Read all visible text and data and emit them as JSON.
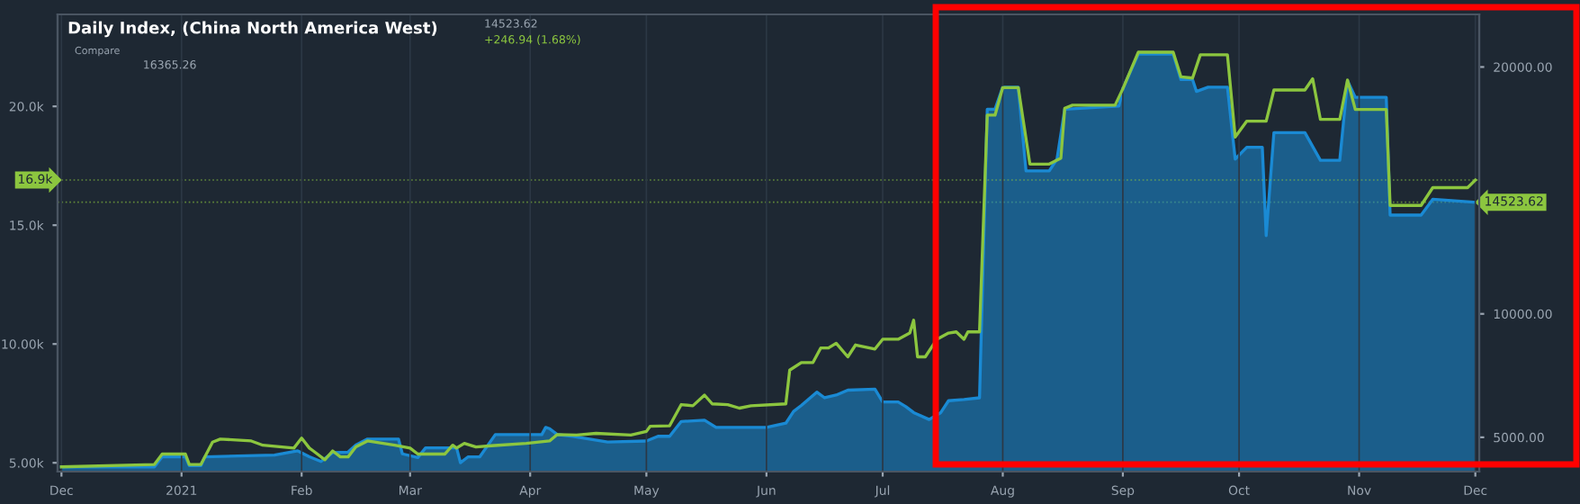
{
  "chart_data": {
    "type": "line",
    "title": "Daily Index, (China North America West)",
    "annotations": [
      "14523.62",
      "+246.94 (1.68%)",
      "Compare",
      "16365.26"
    ],
    "xlim": [
      "2020-11-30",
      "2021-12-02"
    ],
    "xticks": [
      {
        "value": "2020-12-01",
        "label": "Dec"
      },
      {
        "value": "2021-01-01",
        "label": "2021"
      },
      {
        "value": "2021-02-01",
        "label": "Feb"
      },
      {
        "value": "2021-03-01",
        "label": "Mar"
      },
      {
        "value": "2021-04-01",
        "label": "Apr"
      },
      {
        "value": "2021-05-01",
        "label": "May"
      },
      {
        "value": "2021-06-01",
        "label": "Jun"
      },
      {
        "value": "2021-07-01",
        "label": "Jul"
      },
      {
        "value": "2021-08-01",
        "label": "Aug"
      },
      {
        "value": "2021-09-01",
        "label": "Sep"
      },
      {
        "value": "2021-10-01",
        "label": "Oct"
      },
      {
        "value": "2021-11-01",
        "label": "Nov"
      },
      {
        "value": "2021-12-01",
        "label": "Dec"
      }
    ],
    "ylim": [
      4630,
      23870
    ],
    "yticks": [
      {
        "value": 5000,
        "label": "5.00k"
      },
      {
        "value": 10000,
        "label": "10.00k"
      },
      {
        "value": 15000,
        "label": "15.0k"
      },
      {
        "value": 20000,
        "label": "20.0k"
      }
    ],
    "y2lim": [
      3610,
      22130
    ],
    "y2ticks": [
      {
        "value": 5000,
        "label": "5000.00"
      },
      {
        "value": 10000,
        "label": "10000.00"
      },
      {
        "value": 20000,
        "label": "20000.00"
      }
    ],
    "grid": "x",
    "ref_lines": [
      {
        "axis": "y",
        "value": 16900,
        "label": "16.9k",
        "color": "#8cc63f",
        "line_style": "dotted"
      },
      {
        "axis": "y2",
        "value": 14523.62,
        "label": "14523.62",
        "color": "#8cc63f",
        "line_style": "dotted"
      }
    ],
    "series": [
      {
        "type": "area",
        "axis": "y2",
        "color": "#1a8ad4",
        "x": [
          "2020-12-01",
          "2020-12-25",
          "2020-12-27",
          "2021-01-02",
          "2021-01-03",
          "2021-01-06",
          "2021-01-07",
          "2021-01-25",
          "2021-01-31",
          "2021-02-03",
          "2021-02-06",
          "2021-02-09",
          "2021-02-13",
          "2021-02-15",
          "2021-02-18",
          "2021-02-26",
          "2021-02-27",
          "2021-03-03",
          "2021-03-05",
          "2021-03-13",
          "2021-03-14",
          "2021-03-16",
          "2021-03-19",
          "2021-03-23",
          "2021-04-04",
          "2021-04-05",
          "2021-04-06",
          "2021-04-08",
          "2021-04-12",
          "2021-04-21",
          "2021-05-01",
          "2021-05-04",
          "2021-05-07",
          "2021-05-10",
          "2021-05-16",
          "2021-05-19",
          "2021-06-01",
          "2021-06-06",
          "2021-06-08",
          "2021-06-10",
          "2021-06-14",
          "2021-06-16",
          "2021-06-19",
          "2021-06-22",
          "2021-06-29",
          "2021-07-01",
          "2021-07-05",
          "2021-07-07",
          "2021-07-09",
          "2021-07-13",
          "2021-07-16",
          "2021-07-18",
          "2021-07-22",
          "2021-07-26",
          "2021-07-28",
          "2021-07-30",
          "2021-08-01",
          "2021-08-05",
          "2021-08-07",
          "2021-08-13",
          "2021-08-15",
          "2021-08-17",
          "2021-08-31",
          "2021-09-01",
          "2021-09-05",
          "2021-09-14",
          "2021-09-16",
          "2021-09-19",
          "2021-09-20",
          "2021-09-23",
          "2021-09-28",
          "2021-09-30",
          "2021-10-03",
          "2021-10-07",
          "2021-10-08",
          "2021-10-10",
          "2021-10-18",
          "2021-10-22",
          "2021-10-27",
          "2021-10-29",
          "2021-10-31",
          "2021-11-08",
          "2021-11-09",
          "2021-11-17",
          "2021-11-20",
          "2021-12-01"
        ],
        "values": [
          3800,
          3800,
          4210,
          4210,
          3850,
          3850,
          4210,
          4280,
          4450,
          4210,
          4020,
          4380,
          4400,
          4690,
          4930,
          4930,
          4330,
          4180,
          4570,
          4570,
          3970,
          4210,
          4210,
          5110,
          5110,
          5400,
          5350,
          5110,
          5040,
          4810,
          4850,
          5040,
          5040,
          5640,
          5690,
          5400,
          5400,
          5570,
          6050,
          6290,
          6830,
          6600,
          6710,
          6910,
          6950,
          6430,
          6430,
          6240,
          6000,
          5720,
          6000,
          6480,
          6530,
          6600,
          18290,
          18290,
          19180,
          19180,
          15790,
          15790,
          16270,
          18290,
          18420,
          19130,
          20520,
          20520,
          19490,
          19490,
          19010,
          19180,
          19180,
          16270,
          16750,
          16750,
          13170,
          17340,
          17340,
          16220,
          16220,
          19440,
          18770,
          18770,
          14000,
          14000,
          14640,
          14520
        ]
      },
      {
        "type": "line",
        "axis": "y",
        "color": "#8cc63f",
        "x": [
          "2020-12-01",
          "2020-12-25",
          "2020-12-27",
          "2021-01-02",
          "2021-01-03",
          "2021-01-06",
          "2021-01-09",
          "2021-01-11",
          "2021-01-19",
          "2021-01-22",
          "2021-01-30",
          "2021-02-01",
          "2021-02-03",
          "2021-02-04",
          "2021-02-07",
          "2021-02-09",
          "2021-02-11",
          "2021-02-13",
          "2021-02-15",
          "2021-02-18",
          "2021-02-25",
          "2021-03-01",
          "2021-03-03",
          "2021-03-10",
          "2021-03-12",
          "2021-03-13",
          "2021-03-15",
          "2021-03-18",
          "2021-03-22",
          "2021-03-31",
          "2021-04-06",
          "2021-04-08",
          "2021-04-13",
          "2021-04-18",
          "2021-04-27",
          "2021-05-01",
          "2021-05-02",
          "2021-05-07",
          "2021-05-10",
          "2021-05-13",
          "2021-05-16",
          "2021-05-18",
          "2021-05-22",
          "2021-05-25",
          "2021-05-28",
          "2021-06-06",
          "2021-06-07",
          "2021-06-10",
          "2021-06-13",
          "2021-06-15",
          "2021-06-17",
          "2021-06-19",
          "2021-06-22",
          "2021-06-24",
          "2021-06-29",
          "2021-07-01",
          "2021-07-05",
          "2021-07-08",
          "2021-07-09",
          "2021-07-10",
          "2021-07-12",
          "2021-07-15",
          "2021-07-18",
          "2021-07-20",
          "2021-07-22",
          "2021-07-23",
          "2021-07-26",
          "2021-07-28",
          "2021-07-30",
          "2021-08-01",
          "2021-08-05",
          "2021-08-08",
          "2021-08-13",
          "2021-08-16",
          "2021-08-17",
          "2021-08-19",
          "2021-08-30",
          "2021-09-01",
          "2021-09-05",
          "2021-09-14",
          "2021-09-16",
          "2021-09-19",
          "2021-09-21",
          "2021-09-28",
          "2021-09-30",
          "2021-10-03",
          "2021-10-08",
          "2021-10-10",
          "2021-10-18",
          "2021-10-20",
          "2021-10-22",
          "2021-10-27",
          "2021-10-29",
          "2021-10-31",
          "2021-11-08",
          "2021-11-09",
          "2021-11-17",
          "2021-11-20",
          "2021-11-29",
          "2021-12-01"
        ],
        "values": [
          4830,
          4930,
          5370,
          5370,
          4930,
          4930,
          5870,
          6000,
          5920,
          5740,
          5620,
          6040,
          5620,
          5500,
          5130,
          5500,
          5250,
          5250,
          5670,
          5920,
          5740,
          5620,
          5370,
          5370,
          5740,
          5620,
          5820,
          5670,
          5720,
          5820,
          5920,
          6190,
          6170,
          6240,
          6170,
          6320,
          6540,
          6560,
          7450,
          7400,
          7850,
          7480,
          7450,
          7300,
          7400,
          7480,
          8900,
          9220,
          9220,
          9830,
          9830,
          10030,
          9460,
          9960,
          9790,
          10200,
          10200,
          10460,
          11000,
          9460,
          9460,
          10200,
          10460,
          10510,
          10200,
          10510,
          10510,
          19630,
          19630,
          20790,
          20790,
          17570,
          17570,
          17820,
          19920,
          20050,
          20050,
          20740,
          22280,
          22280,
          21240,
          21190,
          22170,
          22170,
          18710,
          19380,
          19380,
          20690,
          20690,
          21160,
          19450,
          19450,
          21110,
          19870,
          19870,
          15830,
          15830,
          16580,
          16580,
          16900
        ]
      }
    ]
  }
}
